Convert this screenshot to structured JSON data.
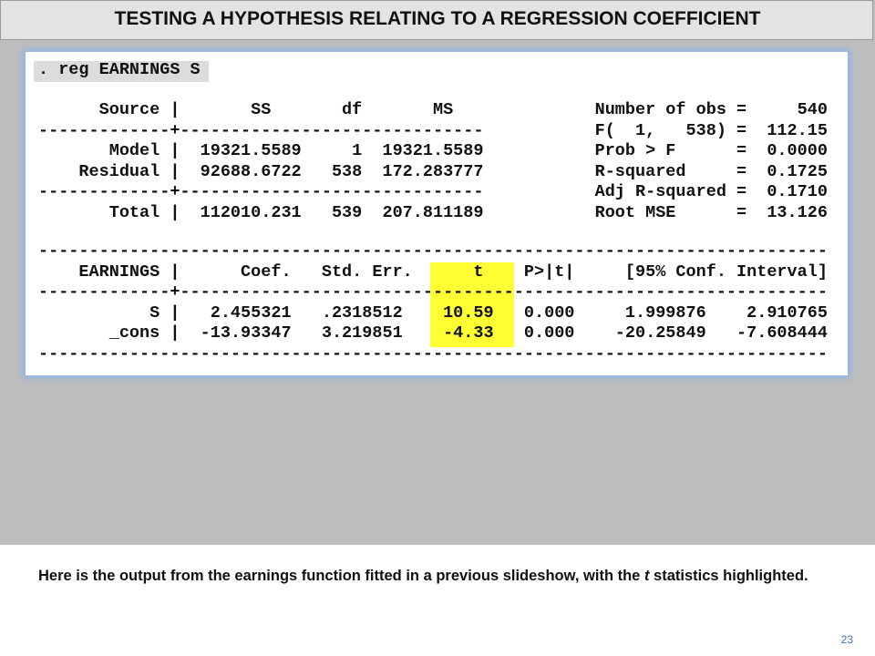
{
  "header": {
    "title": "TESTING A HYPOTHESIS RELATING TO A REGRESSION COEFFICIENT"
  },
  "output": {
    "command": ". reg EARNINGS S",
    "anova": [
      "      Source |       SS       df       MS              Number of obs =     540",
      "-------------+------------------------------           F(  1,   538) =  112.15",
      "       Model |  19321.5589     1  19321.5589           Prob > F      =  0.0000",
      "    Residual |  92688.6722   538  172.283777           R-squared     =  0.1725",
      "-------------+------------------------------           Adj R-squared =  0.1710",
      "       Total |  112010.231   539  207.811189           Root MSE      =  13.126"
    ],
    "coefficients": [
      "------------------------------------------------------------------------------",
      "    EARNINGS |      Coef.   Std. Err.      t    P>|t|     [95% Conf. Interval]",
      "-------------+----------------------------------------------------------------",
      "           S |   2.455321   .2318512    10.59   0.000     1.999876    2.910765",
      "       _cons |  -13.93347   3.219851    -4.33   0.000    -20.25849   -7.608444",
      "------------------------------------------------------------------------------"
    ]
  },
  "caption": {
    "before": "Here is the output from the earnings function fitted in a previous slideshow, with the ",
    "italic": "t",
    "after": " statistics highlighted."
  },
  "page_number": "23"
}
